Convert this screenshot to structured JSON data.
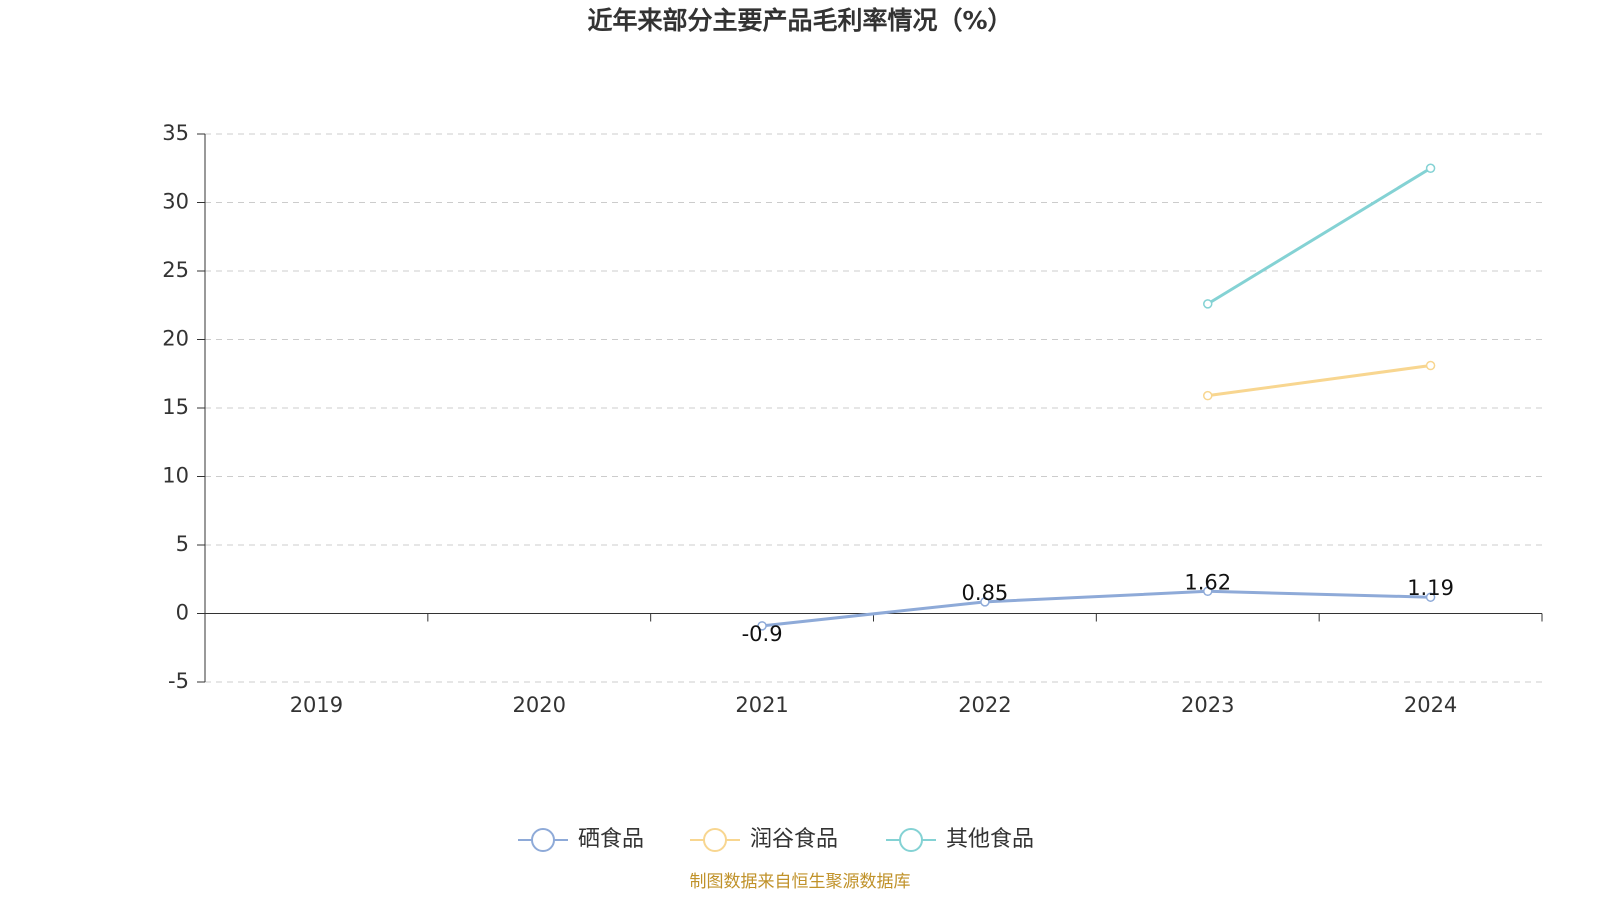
{
  "chart_data": {
    "type": "line",
    "title": "近年来部分主要产品毛利率情况（%）",
    "categories": [
      "2019",
      "2020",
      "2021",
      "2022",
      "2023",
      "2024"
    ],
    "series": [
      {
        "name": "硒食品",
        "color": "#8eaad8",
        "values": [
          null,
          null,
          -0.9,
          0.85,
          1.62,
          1.19
        ],
        "labels": true
      },
      {
        "name": "润谷食品",
        "color": "#f8d690",
        "values": [
          null,
          null,
          null,
          null,
          15.9,
          18.1
        ],
        "labels": false
      },
      {
        "name": "其他食品",
        "color": "#84d2d4",
        "values": [
          null,
          null,
          null,
          null,
          22.6,
          32.5
        ],
        "labels": false
      }
    ],
    "ylim": [
      -5,
      35
    ],
    "yticks": [
      -5,
      0,
      5,
      10,
      15,
      20,
      25,
      30,
      35
    ],
    "grid": true,
    "legend": "bottom",
    "source": "制图数据来自恒生聚源数据库"
  }
}
